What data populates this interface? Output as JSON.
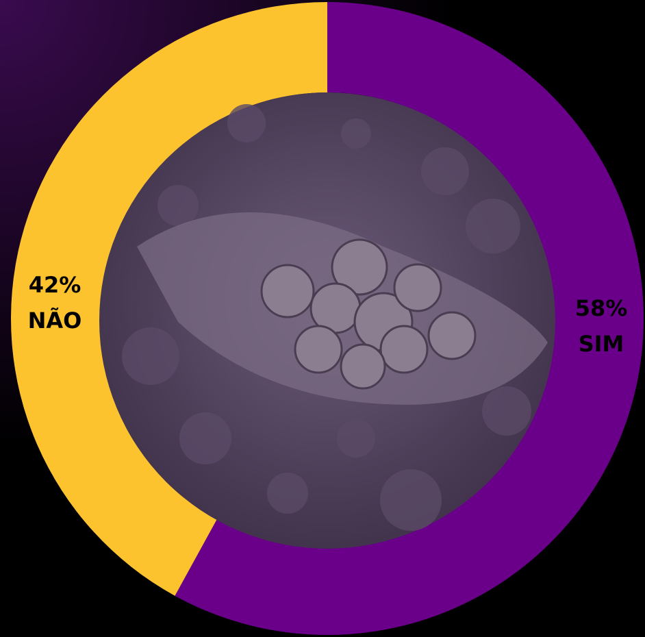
{
  "chart_data": {
    "type": "pie",
    "categories": [
      "SIM",
      "NÃO"
    ],
    "values": [
      58,
      42
    ],
    "value_labels": [
      "58%",
      "42%"
    ],
    "colors": [
      "#6a008a",
      "#fdc32f"
    ],
    "donut": true
  }
}
